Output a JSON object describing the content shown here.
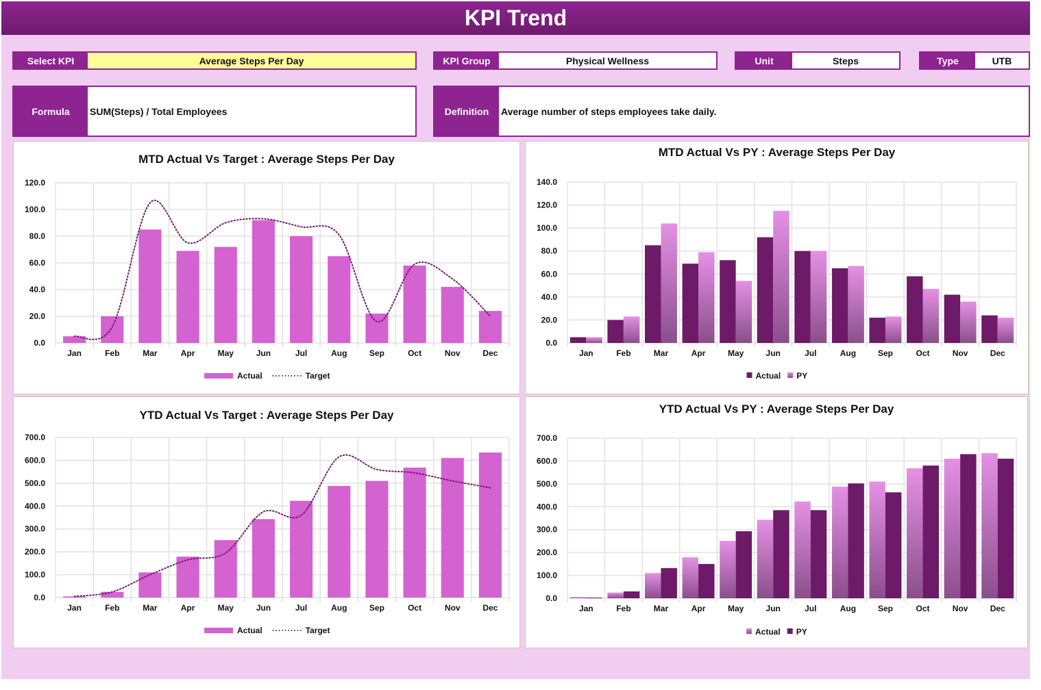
{
  "header": {
    "title": "KPI Trend"
  },
  "fields": {
    "select_kpi": {
      "label": "Select KPI",
      "value": "Average Steps Per Day"
    },
    "kpi_group": {
      "label": "KPI Group",
      "value": "Physical Wellness"
    },
    "unit": {
      "label": "Unit",
      "value": "Steps"
    },
    "type": {
      "label": "Type",
      "value": "UTB"
    },
    "formula": {
      "label": "Formula",
      "value": "SUM(Steps) / Total Employees"
    },
    "definition": {
      "label": "Definition",
      "value": "Average number of steps employees take daily."
    }
  },
  "colors": {
    "header": "#8e2590",
    "label": "#8e2490",
    "background": "#f2cdf2",
    "select_highlight": "#ffff99",
    "actual_bar": "#d462d0",
    "target_line": "#6d1b6e",
    "dark_bar": "#6d1a68",
    "light_bar": "#e38ee3"
  },
  "chart_data": [
    {
      "type": "bar",
      "title": "MTD Actual Vs Target : Average Steps Per Day",
      "categories": [
        "Jan",
        "Feb",
        "Mar",
        "Apr",
        "May",
        "Jun",
        "Jul",
        "Aug",
        "Sep",
        "Oct",
        "Nov",
        "Dec"
      ],
      "ylim": [
        0,
        120
      ],
      "yticks": [
        "0.0",
        "20.0",
        "40.0",
        "60.0",
        "80.0",
        "100.0",
        "120.0"
      ],
      "grid": true,
      "legend": "bottom",
      "series": [
        {
          "name": "Actual",
          "kind": "bar",
          "color": "#d462d0",
          "values": [
            5,
            20,
            85,
            69,
            72,
            92,
            80,
            65,
            22,
            58,
            42,
            24
          ]
        },
        {
          "name": "Target",
          "kind": "line-dotted",
          "color": "#6d1b6e",
          "values": [
            5,
            12,
            105,
            75,
            90,
            93,
            87,
            81,
            16,
            59,
            48,
            20
          ]
        }
      ]
    },
    {
      "type": "bar",
      "title": "MTD Actual Vs PY : Average Steps Per Day",
      "categories": [
        "Jan",
        "Feb",
        "Mar",
        "Apr",
        "May",
        "Jun",
        "Jul",
        "Aug",
        "Sep",
        "Oct",
        "Nov",
        "Dec"
      ],
      "ylim": [
        0,
        140
      ],
      "yticks": [
        "0.0",
        "20.0",
        "40.0",
        "60.0",
        "80.0",
        "100.0",
        "120.0",
        "140.0"
      ],
      "grid": true,
      "legend": "bottom",
      "series": [
        {
          "name": "Actual",
          "kind": "bar",
          "color": "#6d1a68",
          "values": [
            5,
            20,
            85,
            69,
            72,
            92,
            80,
            65,
            22,
            58,
            42,
            24
          ]
        },
        {
          "name": "PY",
          "kind": "bar-gradient",
          "color": "#e38ee3",
          "values": [
            5,
            23,
            104,
            79,
            54,
            115,
            80,
            67,
            23,
            47,
            36,
            22
          ]
        }
      ]
    },
    {
      "type": "bar",
      "title": "YTD Actual Vs Target : Average Steps Per Day",
      "categories": [
        "Jan",
        "Feb",
        "Mar",
        "Apr",
        "May",
        "Jun",
        "Jul",
        "Aug",
        "Sep",
        "Oct",
        "Nov",
        "Dec"
      ],
      "ylim": [
        0,
        700
      ],
      "yticks": [
        "0.0",
        "100.0",
        "200.0",
        "300.0",
        "400.0",
        "500.0",
        "600.0",
        "700.0"
      ],
      "grid": true,
      "legend": "bottom",
      "series": [
        {
          "name": "Actual",
          "kind": "bar",
          "color": "#d462d0",
          "values": [
            5,
            25,
            110,
            179,
            251,
            343,
            423,
            488,
            510,
            568,
            610,
            634
          ]
        },
        {
          "name": "Target",
          "kind": "line-dotted",
          "color": "#6d1b6e",
          "values": [
            5,
            25,
            100,
            165,
            195,
            375,
            360,
            615,
            560,
            545,
            510,
            480
          ]
        }
      ]
    },
    {
      "type": "bar",
      "title": "YTD Actual Vs PY : Average Steps Per Day",
      "categories": [
        "Jan",
        "Feb",
        "Mar",
        "Apr",
        "May",
        "Jun",
        "Jul",
        "Aug",
        "Sep",
        "Oct",
        "Nov",
        "Dec"
      ],
      "ylim": [
        0,
        700
      ],
      "yticks": [
        "0.0",
        "100.0",
        "200.0",
        "300.0",
        "400.0",
        "500.0",
        "600.0",
        "700.0"
      ],
      "grid": true,
      "legend": "bottom",
      "series": [
        {
          "name": "Actual",
          "kind": "bar-gradient",
          "color": "#e38ee3",
          "values": [
            5,
            25,
            110,
            179,
            251,
            343,
            423,
            488,
            510,
            568,
            610,
            634
          ]
        },
        {
          "name": "PY",
          "kind": "bar",
          "color": "#6d1a68",
          "values": [
            3,
            30,
            132,
            150,
            293,
            385,
            385,
            502,
            463,
            580,
            630,
            610
          ]
        }
      ]
    }
  ]
}
